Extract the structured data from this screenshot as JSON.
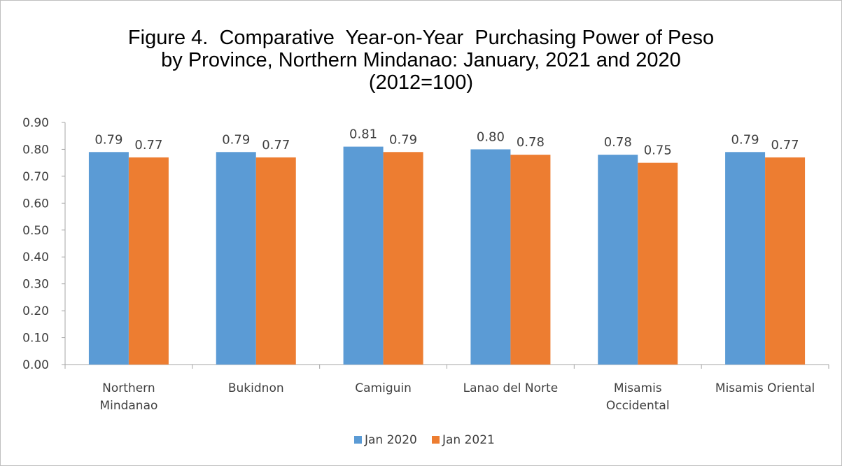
{
  "chart_data": {
    "type": "bar",
    "title_lines": [
      "Figure 4.  Comparative  Year-on-Year  Purchasing Power of Peso",
      "by Province, Northern Mindanao: January, 2021 and 2020",
      "(2012=100)"
    ],
    "categories": [
      [
        "Northern",
        "Mindanao"
      ],
      [
        "Bukidnon"
      ],
      [
        "Camiguin"
      ],
      [
        "Lanao del Norte"
      ],
      [
        "Misamis",
        "Occidental"
      ],
      [
        "Misamis Oriental"
      ]
    ],
    "series": [
      {
        "name": "Jan 2020",
        "color": "#5b9bd5",
        "values": [
          0.79,
          0.79,
          0.81,
          0.8,
          0.78,
          0.79
        ]
      },
      {
        "name": "Jan 2021",
        "color": "#ed7d31",
        "values": [
          0.77,
          0.77,
          0.79,
          0.78,
          0.75,
          0.77
        ]
      }
    ],
    "y_ticks": [
      "0.00",
      "0.10",
      "0.20",
      "0.30",
      "0.40",
      "0.50",
      "0.60",
      "0.70",
      "0.80",
      "0.90"
    ],
    "ylim": [
      0,
      0.9
    ],
    "grid": false,
    "legend_position": "bottom",
    "value_labels": true
  }
}
